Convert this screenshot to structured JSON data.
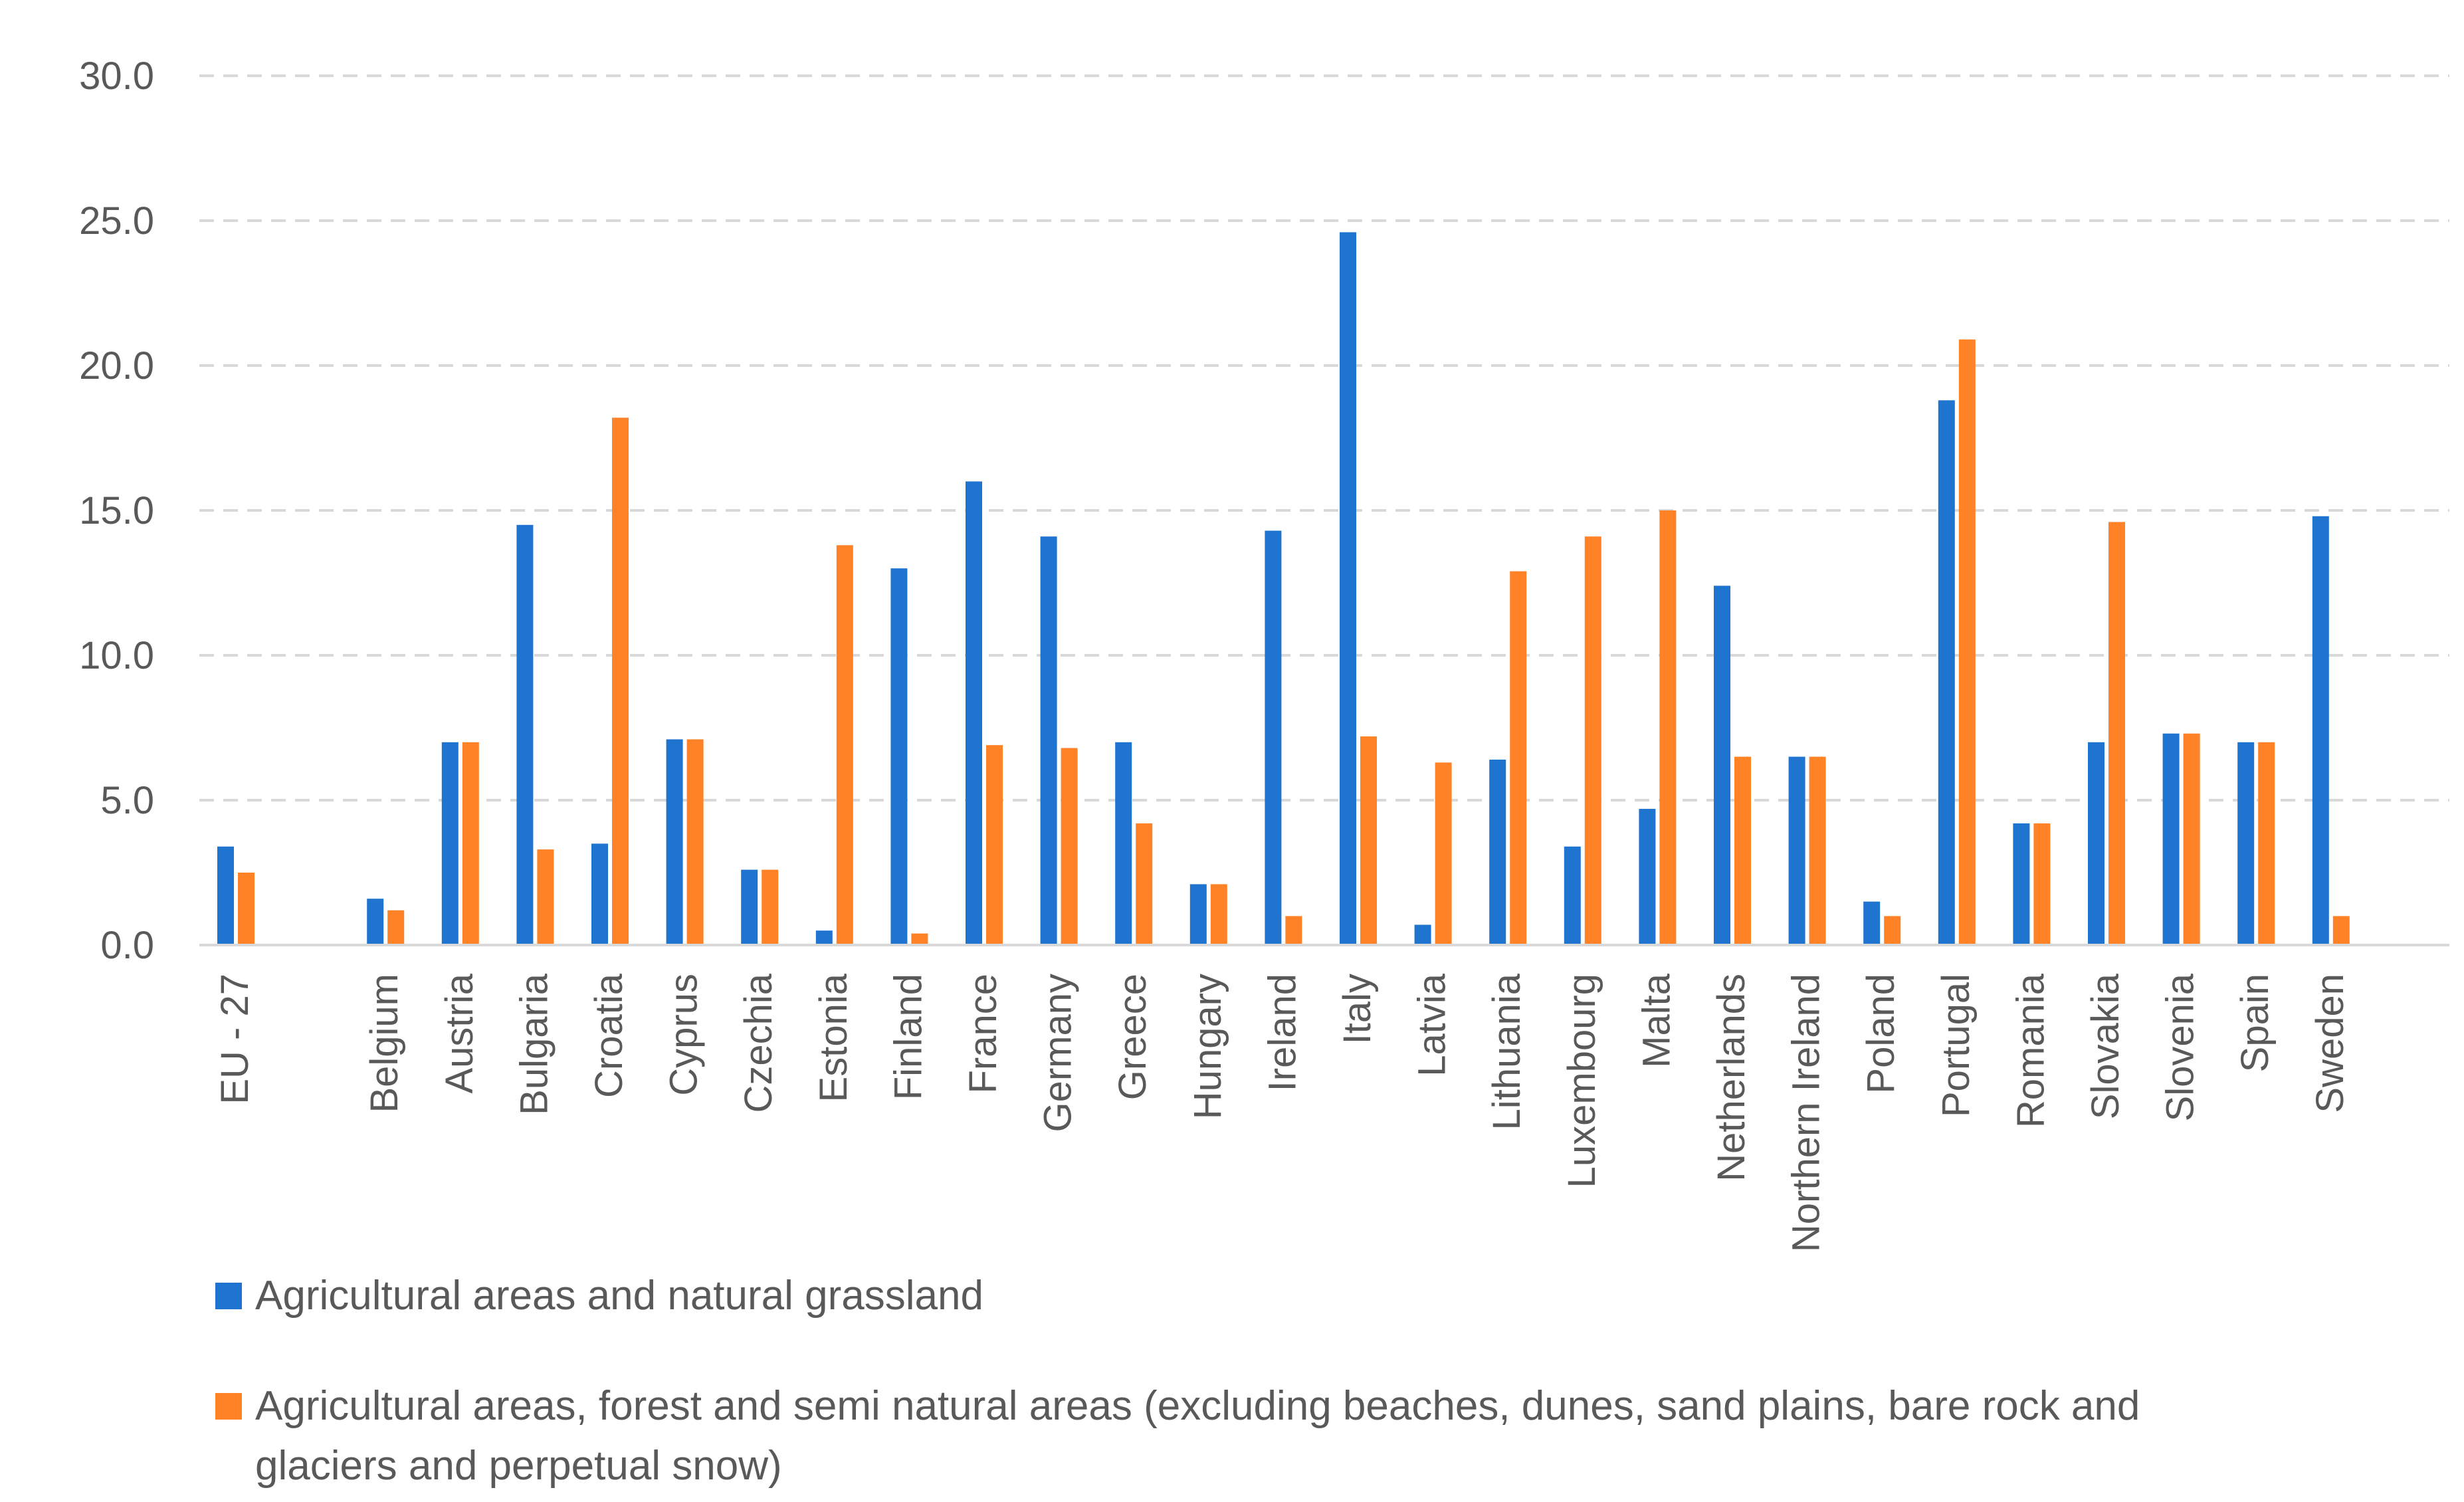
{
  "chart_data": {
    "type": "bar",
    "title": "",
    "xlabel": "",
    "ylabel": "",
    "ylim": [
      0,
      30
    ],
    "yticks": [
      "0.0",
      "5.0",
      "10.0",
      "15.0",
      "20.0",
      "25.0",
      "30.0"
    ],
    "grid": true,
    "legend_position": "bottom",
    "categories": [
      "EU - 27",
      "",
      "Belgium",
      "Austria",
      "Bulgaria",
      "Croatia",
      "Cyprus",
      "Czechia",
      "Estonia",
      "Finland",
      "France",
      "Germany",
      "Greece",
      "Hungary",
      "Ireland",
      "Italy",
      "Latvia",
      "Lithuania",
      "Luxembourg",
      "Malta",
      "Netherlands",
      "Northern Ireland",
      "Poland",
      "Portugal",
      "Romania",
      "Slovakia",
      "Slovenia",
      "Spain",
      "Sweden"
    ],
    "series": [
      {
        "name": "Agricultural areas and natural grassland",
        "color": "#1F74CF",
        "values": [
          3.4,
          null,
          1.6,
          7.0,
          14.5,
          3.5,
          7.1,
          2.6,
          0.5,
          13.0,
          16.0,
          14.1,
          7.0,
          2.1,
          14.3,
          24.6,
          0.7,
          6.4,
          3.4,
          4.7,
          12.4,
          6.5,
          1.5,
          18.8,
          4.2,
          7.0,
          7.3,
          7.0,
          14.8
        ]
      },
      {
        "name": "Agricultural areas, forest and semi natural areas (excluding beaches, dunes, sand plains, bare rock and glaciers and perpetual snow)",
        "legend_lines": [
          "Agricultural areas, forest and semi natural areas (excluding beaches, dunes, sand plains, bare rock and",
          "glaciers and perpetual snow)"
        ],
        "color": "#FF8227",
        "values": [
          2.5,
          null,
          1.2,
          7.0,
          3.3,
          18.2,
          7.1,
          2.6,
          13.8,
          0.4,
          6.9,
          6.8,
          4.2,
          2.1,
          1.0,
          7.2,
          6.3,
          12.9,
          14.1,
          15.0,
          6.5,
          6.5,
          1.0,
          20.9,
          4.2,
          14.6,
          7.3,
          7.0,
          1.0
        ]
      }
    ]
  }
}
